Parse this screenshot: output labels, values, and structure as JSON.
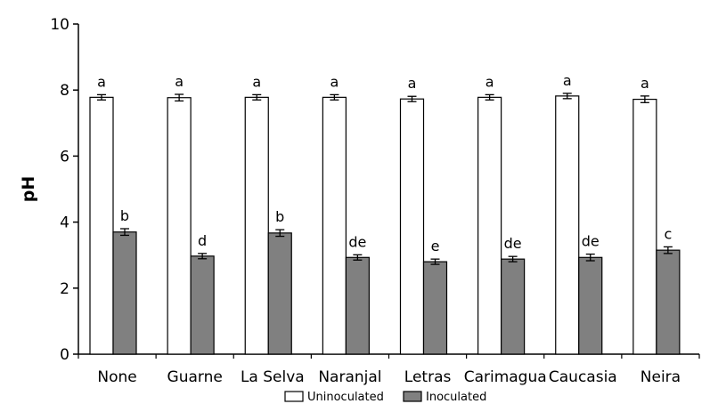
{
  "chart_data": {
    "type": "bar",
    "title": "",
    "xlabel": "",
    "ylabel": "pH",
    "ylim": [
      0,
      10
    ],
    "yticks": [
      0,
      2,
      4,
      6,
      8,
      10
    ],
    "grid": false,
    "legend_position": "bottom-center",
    "categories": [
      "None",
      "Guarne",
      "La Selva",
      "Naranjal",
      "Letras",
      "Carimagua",
      "Caucasia",
      "Neira"
    ],
    "series": [
      {
        "name": "Uninoculated",
        "color": "#ffffff",
        "values": [
          7.78,
          7.77,
          7.78,
          7.78,
          7.73,
          7.78,
          7.82,
          7.72
        ],
        "errors": [
          0.08,
          0.1,
          0.08,
          0.08,
          0.08,
          0.08,
          0.08,
          0.1
        ],
        "labels": [
          "a",
          "a",
          "a",
          "a",
          "a",
          "a",
          "a",
          "a"
        ]
      },
      {
        "name": "Inoculated",
        "color": "#808080",
        "values": [
          3.7,
          2.97,
          3.67,
          2.93,
          2.8,
          2.88,
          2.93,
          3.15
        ],
        "errors": [
          0.1,
          0.08,
          0.1,
          0.08,
          0.08,
          0.08,
          0.1,
          0.1
        ],
        "labels": [
          "b",
          "d",
          "b",
          "de",
          "e",
          "de",
          "de",
          "c"
        ]
      }
    ]
  }
}
